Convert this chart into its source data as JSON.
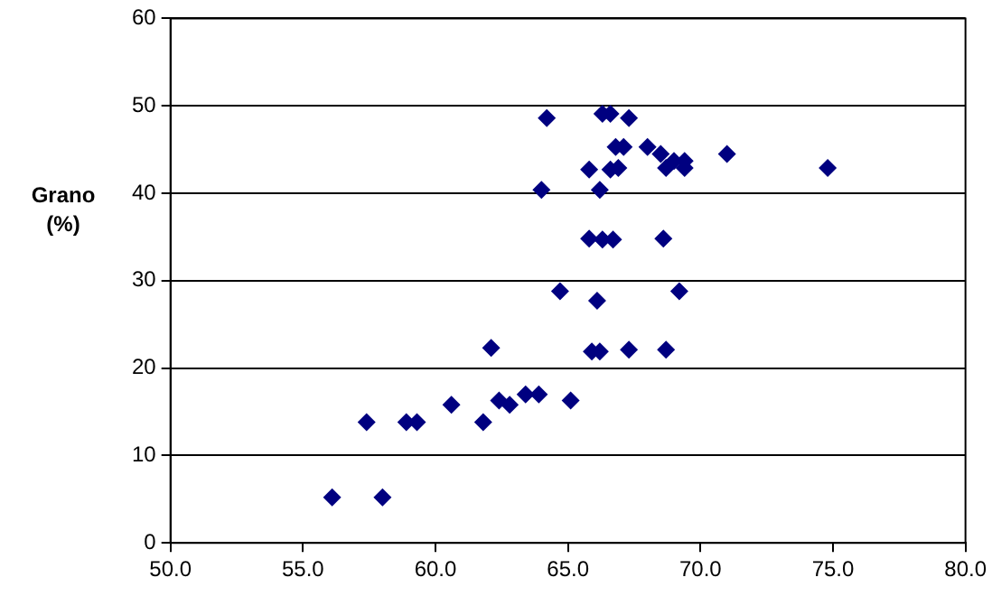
{
  "chart_data": {
    "type": "scatter",
    "ylabel": "Grano\n(%)",
    "x": [
      56.1,
      58.0,
      57.4,
      58.9,
      59.3,
      60.6,
      61.8,
      62.1,
      62.4,
      62.8,
      63.4,
      63.9,
      65.1,
      64.7,
      66.1,
      65.9,
      66.2,
      67.3,
      68.7,
      69.2,
      65.8,
      66.3,
      66.7,
      68.6,
      64.0,
      66.2,
      65.8,
      66.6,
      66.9,
      66.8,
      67.1,
      68.0,
      68.5,
      68.7,
      69.0,
      69.4,
      69.4,
      71.0,
      74.8,
      64.2,
      66.3,
      66.6,
      67.3
    ],
    "series": [
      {
        "color": "#000080",
        "values": [
          5.2,
          5.2,
          13.8,
          13.8,
          13.8,
          15.8,
          13.8,
          22.3,
          16.3,
          15.8,
          17.0,
          17.0,
          16.3,
          28.8,
          27.7,
          21.9,
          21.9,
          22.1,
          22.1,
          28.8,
          34.8,
          34.7,
          34.7,
          34.8,
          40.4,
          40.4,
          42.7,
          42.7,
          42.9,
          45.3,
          45.3,
          45.3,
          44.5,
          42.9,
          43.7,
          43.7,
          42.9,
          44.5,
          42.9,
          48.6,
          49.1,
          49.1,
          48.6
        ]
      }
    ],
    "xlim": [
      50,
      80
    ],
    "xticks": [
      {
        "value": 50,
        "label": "50.0"
      },
      {
        "value": 55,
        "label": "55.0"
      },
      {
        "value": 60,
        "label": "60.0"
      },
      {
        "value": 65,
        "label": "65.0"
      },
      {
        "value": 70,
        "label": "70.0"
      },
      {
        "value": 75,
        "label": "75.0"
      },
      {
        "value": 80,
        "label": "80.0"
      }
    ],
    "ylim": [
      0,
      60
    ],
    "yticks": [
      0,
      10,
      20,
      30,
      40,
      50,
      60
    ],
    "grid": "y",
    "legend": false,
    "marker": "diamond"
  }
}
